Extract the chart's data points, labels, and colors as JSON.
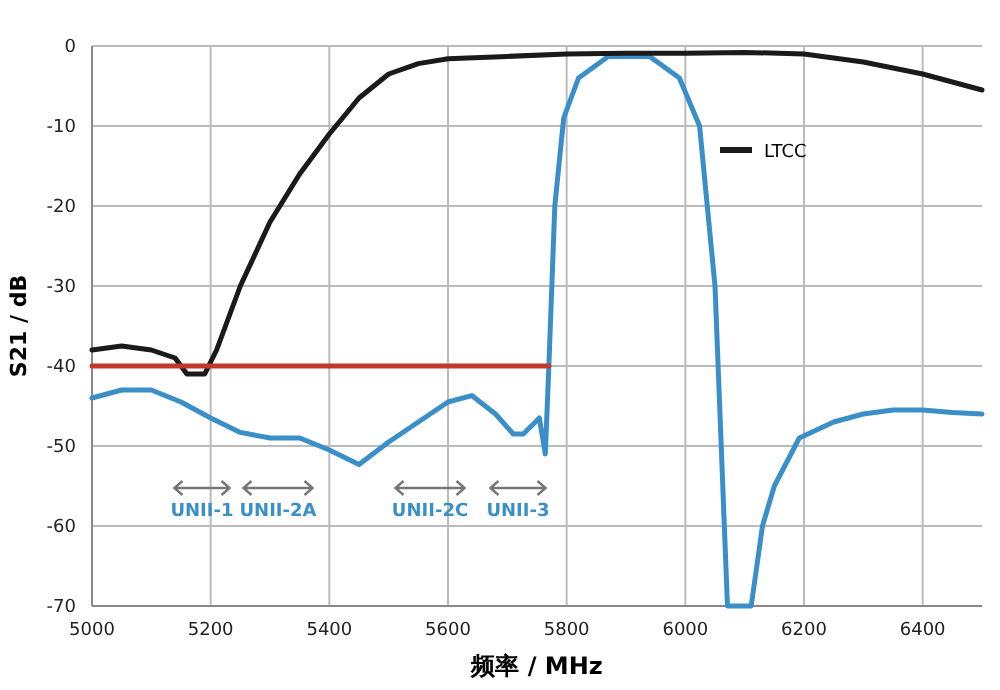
{
  "chart_data": {
    "type": "line",
    "xlabel": "频率 / MHz",
    "ylabel": "S21 / dB",
    "xlim": [
      5000,
      6500
    ],
    "ylim": [
      -70,
      0
    ],
    "xticks": [
      5000,
      5200,
      5400,
      5600,
      5800,
      6000,
      6200,
      6400
    ],
    "yticks": [
      -70,
      -60,
      -50,
      -40,
      -30,
      -20,
      -10,
      0
    ],
    "grid": true,
    "legend": "right",
    "line_style": "solid",
    "marker": "none",
    "series": [
      {
        "color": "#3b8fc8",
        "x": [
          5000,
          5050,
          5100,
          5150,
          5200,
          5250,
          5300,
          5350,
          5400,
          5450,
          5500,
          5550,
          5600,
          5640,
          5680,
          5710,
          5727,
          5754,
          5764,
          5770,
          5780,
          5795,
          5820,
          5870,
          5940,
          5990,
          6024,
          6050,
          6071,
          6111,
          6130,
          6150,
          6192,
          6250,
          6300,
          6350,
          6400,
          6450,
          6500
        ],
        "values": [
          -44,
          -43,
          -43,
          -44.5,
          -46.5,
          -48.3,
          -49,
          -49,
          -50.5,
          -52.3,
          -49.5,
          -47,
          -44.5,
          -43.7,
          -46,
          -48.5,
          -48.5,
          -46.5,
          -51,
          -40,
          -20,
          -9,
          -4,
          -1.3,
          -1.3,
          -4,
          -10,
          -30,
          -70,
          -70,
          -60,
          -55,
          -49,
          -47,
          -46,
          -45.5,
          -45.5,
          -45.8,
          -46
        ]
      },
      {
        "name": "LTCC",
        "color": "#1a1a1a",
        "x": [
          5000,
          5050,
          5100,
          5140,
          5160,
          5190,
          5210,
          5250,
          5300,
          5350,
          5400,
          5450,
          5500,
          5550,
          5600,
          5700,
          5800,
          5900,
          6000,
          6100,
          6200,
          6300,
          6400,
          6500
        ],
        "values": [
          -38,
          -37.5,
          -38,
          -39,
          -41,
          -41,
          -38,
          -30,
          -22,
          -16,
          -11,
          -6.5,
          -3.5,
          -2.2,
          -1.6,
          -1.3,
          -1,
          -0.9,
          -0.9,
          -0.8,
          -1,
          -2,
          -3.5,
          -5.5
        ]
      },
      {
        "color": "#c0392b",
        "x": [
          5000,
          5770
        ],
        "values": [
          -40,
          -40
        ]
      }
    ],
    "annotations": [
      "UNII-1",
      "UNII-2A",
      "UNII-2C",
      "UNII-3"
    ]
  }
}
